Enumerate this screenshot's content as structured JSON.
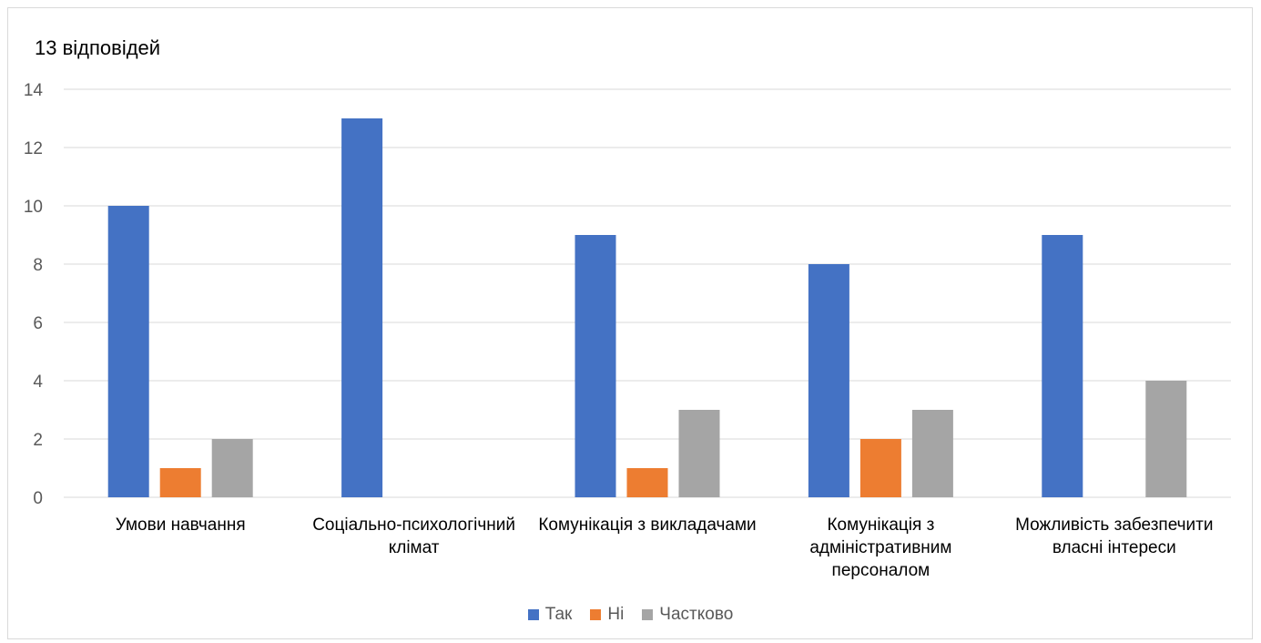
{
  "chart_data": {
    "type": "bar",
    "title": "13 відповідей",
    "categories": [
      [
        "Умови навчання"
      ],
      [
        "Соціально-психологічний",
        "клімат"
      ],
      [
        "Комунікація з викладачами"
      ],
      [
        "Комунікація з",
        "адміністративним",
        "персоналом"
      ],
      [
        "Можливість забезпечити",
        "власні інтереси"
      ]
    ],
    "series": [
      {
        "name": "Так",
        "color": "#4472c4",
        "values": [
          10,
          13,
          9,
          8,
          9
        ]
      },
      {
        "name": "Ні",
        "color": "#ed7d31",
        "values": [
          1,
          0,
          1,
          2,
          0
        ]
      },
      {
        "name": "Частково",
        "color": "#a5a5a5",
        "values": [
          2,
          0,
          3,
          3,
          4
        ]
      }
    ],
    "ylim": [
      0,
      14
    ],
    "yticks": [
      0,
      2,
      4,
      6,
      8,
      10,
      12,
      14
    ],
    "grid": true,
    "legend_position": "bottom"
  }
}
